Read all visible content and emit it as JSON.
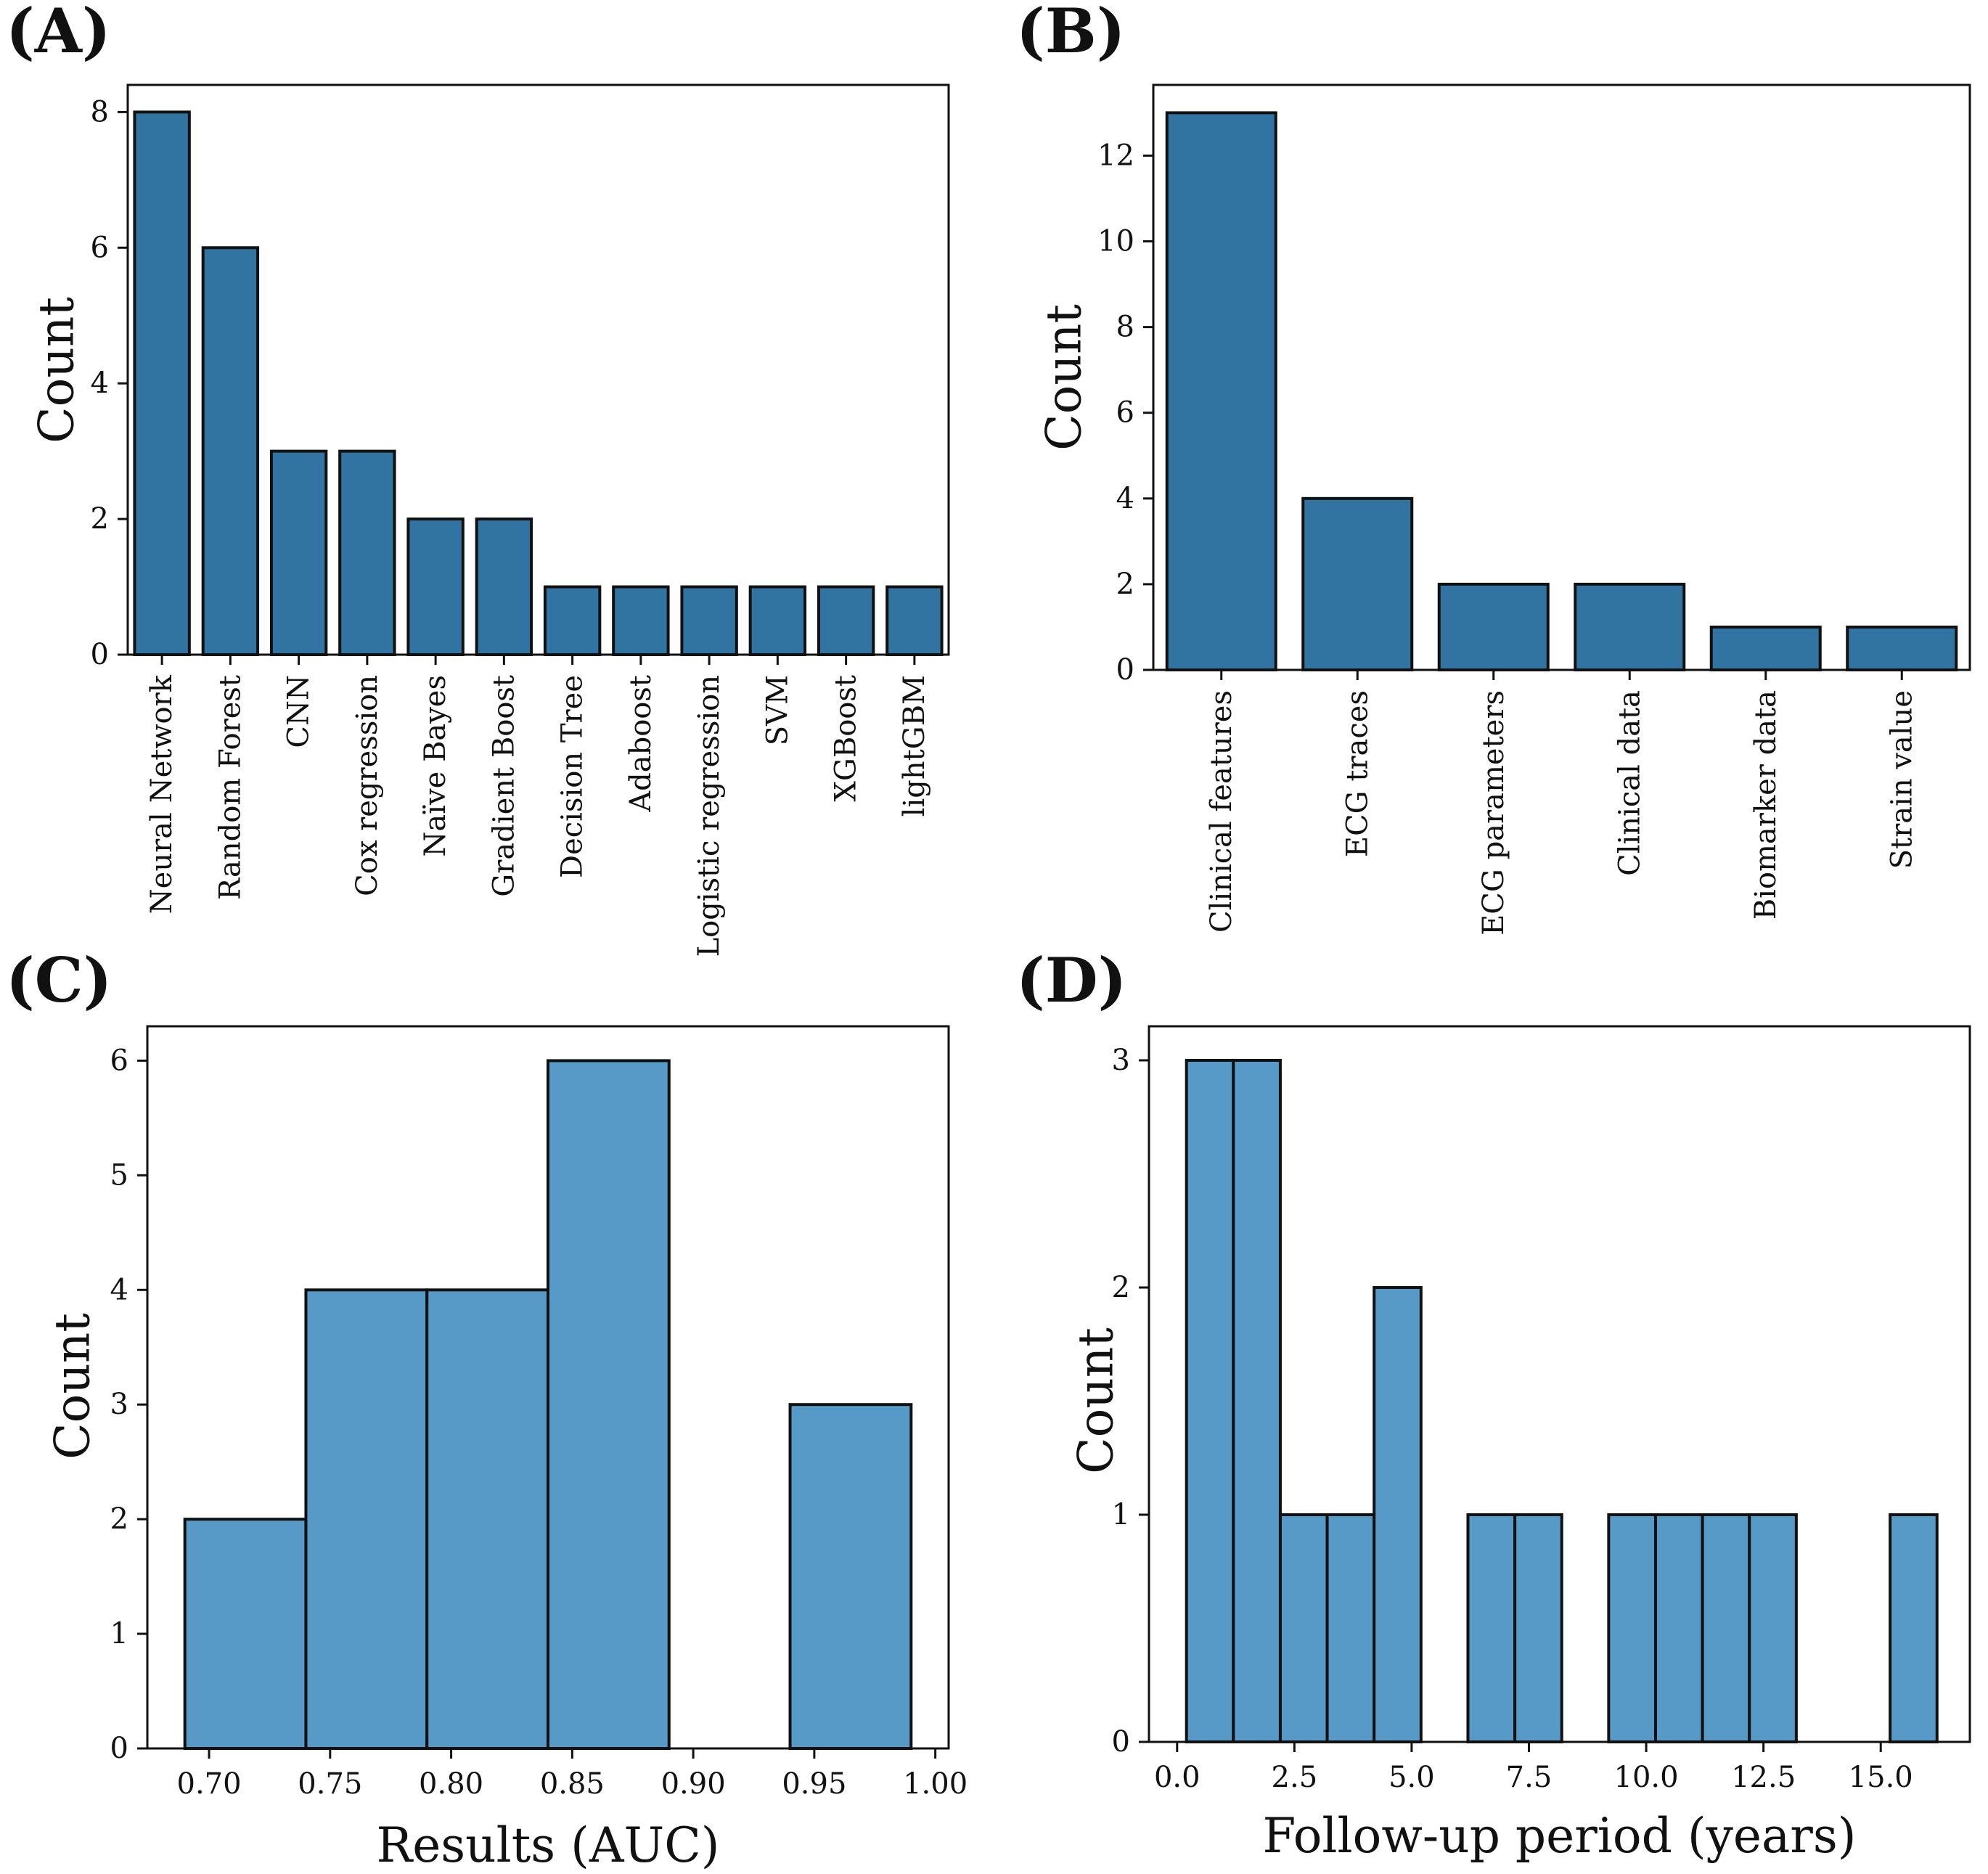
{
  "chart_data": [
    {
      "panel_label": "(A)",
      "type": "bar",
      "ylabel": "Count",
      "xlabel": "",
      "ylim": [
        0,
        8.4
      ],
      "yticks": [
        "0",
        "2",
        "4",
        "6",
        "8"
      ],
      "color": "#3274a1",
      "categories": [
        "Neural Network",
        "Random Forest",
        "CNN",
        "Cox regression",
        "Naïve Bayes",
        "Gradient Boost",
        "Decision Tree",
        "Adaboost",
        "Logistic regression",
        "SVM",
        "XGBoost",
        "lightGBM"
      ],
      "values": [
        8,
        6,
        3,
        3,
        2,
        2,
        1,
        1,
        1,
        1,
        1,
        1
      ]
    },
    {
      "panel_label": "(B)",
      "type": "bar",
      "ylabel": "Count",
      "xlabel": "",
      "ylim": [
        0,
        13.65
      ],
      "yticks": [
        "0",
        "2",
        "4",
        "6",
        "8",
        "10",
        "12"
      ],
      "color": "#3274a1",
      "categories": [
        "Clinical features",
        "ECG traces",
        "ECG parameters",
        "Clinical data",
        "Biomarker data",
        "Strain value"
      ],
      "values": [
        13,
        4,
        2,
        2,
        1,
        1
      ]
    },
    {
      "panel_label": "(C)",
      "type": "histogram",
      "ylabel": "Count",
      "xlabel": "Results (AUC)",
      "xlim": [
        0.6745,
        1.0055
      ],
      "ylim": [
        0,
        6.3
      ],
      "xticks": [
        "0.70",
        "0.75",
        "0.80",
        "0.85",
        "0.90",
        "0.95",
        "1.00"
      ],
      "yticks": [
        "0",
        "1",
        "2",
        "3",
        "4",
        "5",
        "6"
      ],
      "color": "#5799c7",
      "bins": [
        {
          "start": 0.69,
          "end": 0.74,
          "count": 2
        },
        {
          "start": 0.74,
          "end": 0.79,
          "count": 4
        },
        {
          "start": 0.79,
          "end": 0.84,
          "count": 4
        },
        {
          "start": 0.84,
          "end": 0.89,
          "count": 6
        },
        {
          "start": 0.89,
          "end": 0.94,
          "count": 0
        },
        {
          "start": 0.94,
          "end": 0.99,
          "count": 3
        }
      ]
    },
    {
      "panel_label": "(D)",
      "type": "histogram",
      "ylabel": "Count",
      "xlabel": "Follow-up period (years)",
      "xlim": [
        -0.6,
        16.9
      ],
      "ylim": [
        0,
        3.15
      ],
      "xticks": [
        "0.0",
        "2.5",
        "5.0",
        "7.5",
        "10.0",
        "12.5",
        "15.0"
      ],
      "yticks": [
        "0",
        "1",
        "2",
        "3"
      ],
      "color": "#5799c7",
      "bins": [
        {
          "start": 0.2,
          "end": 1.2,
          "count": 3
        },
        {
          "start": 1.2,
          "end": 2.2,
          "count": 3
        },
        {
          "start": 2.2,
          "end": 3.2,
          "count": 1
        },
        {
          "start": 3.2,
          "end": 4.2,
          "count": 1
        },
        {
          "start": 4.2,
          "end": 5.2,
          "count": 2
        },
        {
          "start": 5.2,
          "end": 6.2,
          "count": 0
        },
        {
          "start": 6.2,
          "end": 7.2,
          "count": 1
        },
        {
          "start": 7.2,
          "end": 8.2,
          "count": 1
        },
        {
          "start": 8.2,
          "end": 9.2,
          "count": 0
        },
        {
          "start": 9.2,
          "end": 10.2,
          "count": 1
        },
        {
          "start": 10.2,
          "end": 11.2,
          "count": 1
        },
        {
          "start": 11.2,
          "end": 12.2,
          "count": 1
        },
        {
          "start": 12.2,
          "end": 13.2,
          "count": 1
        },
        {
          "start": 13.2,
          "end": 14.2,
          "count": 0
        },
        {
          "start": 14.2,
          "end": 15.2,
          "count": 0
        },
        {
          "start": 15.2,
          "end": 16.2,
          "count": 1
        }
      ]
    }
  ]
}
